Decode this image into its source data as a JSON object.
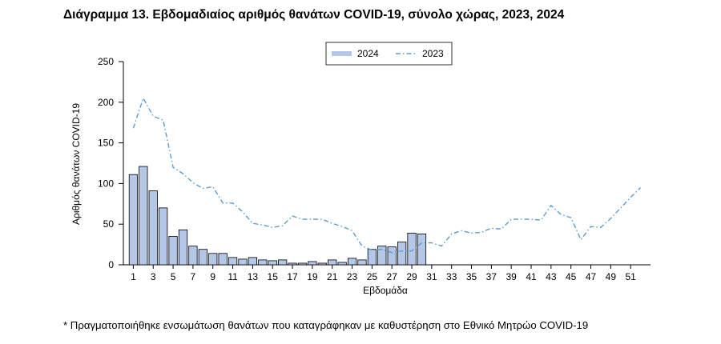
{
  "page": {
    "title": "Διάγραμμα 13. Εβδομαδιαίος αριθμός θανάτων COVID-19, σύνολο χώρας, 2023, 2024",
    "footnote": "* Πραγματοποιήθηκε ενσωμάτωση θανάτων που καταγράφηκαν με καθυστέρηση στο Εθνικό Μητρώο COVID-19"
  },
  "chart_data": {
    "type": "bar",
    "title": "Διάγραμμα 13. Εβδομαδιαίος αριθμός θανάτων COVID-19, σύνολο χώρας, 2023, 2024",
    "xlabel": "Εβδομάδα",
    "ylabel": "Αριθμός θανάτων COVID-19",
    "ylim": [
      0,
      250
    ],
    "yticks": [
      0,
      50,
      100,
      150,
      200,
      250
    ],
    "xlim": [
      0,
      53
    ],
    "xticks": [
      1,
      3,
      5,
      7,
      9,
      11,
      13,
      15,
      17,
      19,
      21,
      23,
      25,
      27,
      29,
      31,
      33,
      35,
      37,
      39,
      41,
      43,
      45,
      47,
      49,
      51
    ],
    "legend_position": "top-center",
    "grid": false,
    "series": [
      {
        "name": "2024",
        "kind": "bar",
        "color": "#b4c7e7",
        "edge_color": "#000000",
        "x": [
          1,
          2,
          3,
          4,
          5,
          6,
          7,
          8,
          9,
          10,
          11,
          12,
          13,
          14,
          15,
          16,
          17,
          18,
          19,
          20,
          21,
          22,
          23,
          24,
          25,
          26,
          27,
          28,
          29,
          30
        ],
        "values": [
          111,
          121,
          91,
          70,
          35,
          43,
          23,
          19,
          14,
          14,
          9,
          7,
          9,
          6,
          5,
          6,
          2,
          2,
          4,
          2,
          6,
          3,
          8,
          6,
          19,
          23,
          22,
          28,
          39,
          38
        ]
      },
      {
        "name": "2023",
        "kind": "line",
        "color": "#5b9bd5",
        "dash": "dash-dot",
        "x": [
          1,
          2,
          3,
          4,
          5,
          6,
          7,
          8,
          9,
          10,
          11,
          12,
          13,
          14,
          15,
          16,
          17,
          18,
          19,
          20,
          21,
          22,
          23,
          24,
          25,
          26,
          27,
          28,
          29,
          30,
          31,
          32,
          33,
          34,
          35,
          36,
          37,
          38,
          39,
          40,
          41,
          42,
          43,
          44,
          45,
          46,
          47,
          48,
          49,
          50,
          51,
          52
        ],
        "values": [
          168,
          205,
          183,
          178,
          120,
          112,
          101,
          94,
          96,
          76,
          76,
          65,
          51,
          49,
          46,
          48,
          60,
          56,
          56,
          56,
          51,
          47,
          42,
          23,
          18,
          19,
          15,
          17,
          17,
          27,
          27,
          23,
          38,
          42,
          39,
          40,
          45,
          44,
          56,
          56,
          56,
          55,
          73,
          62,
          58,
          31,
          47,
          46,
          57,
          70,
          83,
          95
        ]
      }
    ]
  }
}
